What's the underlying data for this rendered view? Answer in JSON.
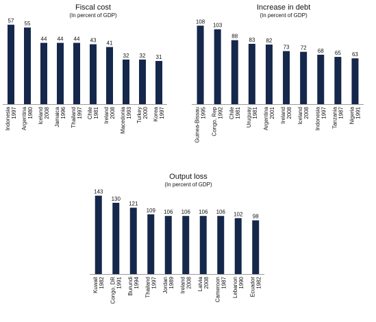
{
  "chart_data": [
    {
      "type": "bar",
      "title": "Fiscal cost",
      "subtitle": "(In percent of GDP)",
      "categories": [
        [
          "Indonesia",
          "1997"
        ],
        [
          "Argentina",
          "1980"
        ],
        [
          "Iceland",
          "2008"
        ],
        [
          "Jamaica",
          "1996"
        ],
        [
          "Thailand",
          "1997"
        ],
        [
          "Chile",
          "1981"
        ],
        [
          "Ireland",
          "2008"
        ],
        [
          "Macedonia",
          "1993"
        ],
        [
          "Turkey",
          "2000"
        ],
        [
          "Korea",
          "1997"
        ]
      ],
      "values": [
        57,
        55,
        44,
        44,
        44,
        43,
        41,
        32,
        32,
        31
      ],
      "value_labels": [
        "57",
        "55",
        "44",
        "44",
        "44",
        "43",
        "41",
        "32",
        "32",
        "31"
      ],
      "ylim": [
        0,
        60
      ],
      "bar_color": "#15284b",
      "axis_color": "#9a9a9a",
      "grid": false
    },
    {
      "type": "bar",
      "title": "Increase in debt",
      "subtitle": "(In percent of GDP)",
      "categories": [
        [
          "Guinea-Bissau",
          "1995"
        ],
        [
          "Congo, Rep",
          "1992"
        ],
        [
          "Chile",
          "1981"
        ],
        [
          "Uruguay",
          "1981"
        ],
        [
          "Argentina",
          "2001"
        ],
        [
          "Ireland",
          "2008"
        ],
        [
          "Iceland",
          "2008"
        ],
        [
          "Indonesia",
          "1997"
        ],
        [
          "Tanzania",
          "1987"
        ],
        [
          "Nigeria",
          "1991"
        ]
      ],
      "values": [
        108,
        103,
        88,
        83,
        82,
        73,
        72,
        68,
        65,
        63
      ],
      "value_labels": [
        "108",
        "103",
        "88",
        "83",
        "82",
        "73",
        "72",
        "68",
        "65",
        "63"
      ],
      "ylim": [
        0,
        115
      ],
      "bar_color": "#15284b",
      "axis_color": "#9a9a9a",
      "grid": false
    },
    {
      "type": "bar",
      "title": "Output loss",
      "subtitle": "(In percent of GDP)",
      "categories": [
        [
          "Kuwait",
          "1982"
        ],
        [
          "Congo, DR",
          "1991"
        ],
        [
          "Burundi",
          "1994"
        ],
        [
          "Thailand",
          "1997"
        ],
        [
          "Jordan",
          "1989"
        ],
        [
          "Ireland",
          "2008"
        ],
        [
          "Latvia",
          "2008"
        ],
        [
          "Cameroon",
          "1987"
        ],
        [
          "Lebanon",
          "1990"
        ],
        [
          "Ecuador",
          "1982"
        ]
      ],
      "values": [
        143,
        130,
        121,
        109,
        106,
        106,
        106,
        106,
        102,
        98
      ],
      "value_labels": [
        "143",
        "130",
        "121",
        "109",
        "106",
        "106",
        "106",
        "106",
        "102",
        "98"
      ],
      "ylim": [
        0,
        150
      ],
      "bar_color": "#15284b",
      "axis_color": "#9a9a9a",
      "grid": false
    }
  ]
}
